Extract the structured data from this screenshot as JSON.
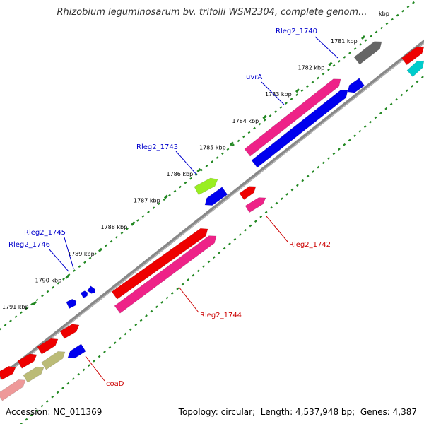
{
  "title": "Rhizobium leguminosarum bv. trifolii WSM2304, complete genom...",
  "footer": {
    "accession_label": "Accession:",
    "accession": "NC_011369",
    "topology_label": "Topology:",
    "topology": "circular",
    "length_label": "Length:",
    "length": "4,537,948 bp",
    "genes_label": "Genes:",
    "genes": "4,387"
  },
  "ticks": [
    {
      "label": "1781 kbp",
      "kbp": 1781
    },
    {
      "label": "1782 kbp",
      "kbp": 1782
    },
    {
      "label": "1783 kbp",
      "kbp": 1783
    },
    {
      "label": "1784 kbp",
      "kbp": 1784
    },
    {
      "label": "1785 kbp",
      "kbp": 1785
    },
    {
      "label": "1786 kbp",
      "kbp": 1786
    },
    {
      "label": "1787 kbp",
      "kbp": 1787
    },
    {
      "label": "1788 kbp",
      "kbp": 1788
    },
    {
      "label": "1789 kbp",
      "kbp": 1789
    },
    {
      "label": "1790 kbp",
      "kbp": 1790
    },
    {
      "label": "1791 kbp",
      "kbp": 1791
    }
  ],
  "gene_labels": [
    {
      "name": "Rleg2_1740",
      "strand": "forward"
    },
    {
      "name": "uvrA",
      "strand": "forward"
    },
    {
      "name": "Rleg2_1743",
      "strand": "forward"
    },
    {
      "name": "Rleg2_1745",
      "strand": "forward"
    },
    {
      "name": "Rleg2_1746",
      "strand": "forward"
    },
    {
      "name": "Rleg2_1742",
      "strand": "reverse"
    },
    {
      "name": "Rleg2_1744",
      "strand": "reverse"
    },
    {
      "name": "coaD",
      "strand": "reverse"
    }
  ],
  "colors": {
    "forward_label": "#0000cc",
    "reverse_label": "#cc0000",
    "backbone": "#888888",
    "tick": "#228822",
    "red": "#ee0000",
    "pink": "#ee2288",
    "blue": "#0000ee",
    "grey": "#666666",
    "cyan": "#00cccc",
    "lime": "#99ee22",
    "olive": "#bbbb77",
    "salmon": "#ee9999"
  }
}
